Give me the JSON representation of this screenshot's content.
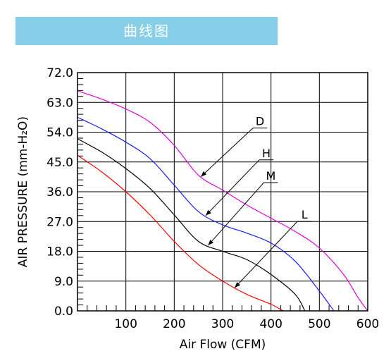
{
  "banner": {
    "title": "曲线图"
  },
  "chart_data": {
    "type": "line",
    "xlabel": "Air Flow (CFM)",
    "ylabel": "AIR PRESSURE (mm-H₂O)",
    "xlim": [
      0,
      600
    ],
    "ylim": [
      0,
      72
    ],
    "x_ticks": [
      "100",
      "200",
      "300",
      "400",
      "500",
      "600"
    ],
    "y_ticks": [
      "0.0",
      "9.0",
      "18.0",
      "27.0",
      "36.0",
      "45.0",
      "54.0",
      "63.0",
      "72.0"
    ],
    "grid": true,
    "series": [
      {
        "name": "D",
        "color": "#e000e0",
        "x": [
          0,
          50,
          100,
          150,
          200,
          250,
          300,
          350,
          400,
          450,
          500,
          550,
          580,
          600
        ],
        "y": [
          66.5,
          64,
          61,
          57,
          50,
          41,
          36.5,
          32,
          28,
          24,
          19,
          11,
          4,
          0
        ]
      },
      {
        "name": "H",
        "color": "#1a1aff",
        "x": [
          0,
          50,
          100,
          150,
          200,
          250,
          300,
          350,
          400,
          450,
          500,
          530
        ],
        "y": [
          58.5,
          55,
          51,
          46,
          38,
          30,
          26,
          23.5,
          20.5,
          15,
          6,
          0
        ]
      },
      {
        "name": "M",
        "color": "#000000",
        "x": [
          0,
          50,
          100,
          150,
          200,
          250,
          300,
          350,
          400,
          450,
          470
        ],
        "y": [
          52,
          48,
          43,
          37,
          29,
          21,
          18,
          15.5,
          11,
          5,
          0
        ]
      },
      {
        "name": "L",
        "color": "#ff0000",
        "x": [
          0,
          50,
          100,
          150,
          200,
          250,
          300,
          350,
          400,
          425
        ],
        "y": [
          47,
          42,
          36,
          29,
          21,
          14,
          9,
          5,
          2,
          0
        ]
      }
    ]
  }
}
